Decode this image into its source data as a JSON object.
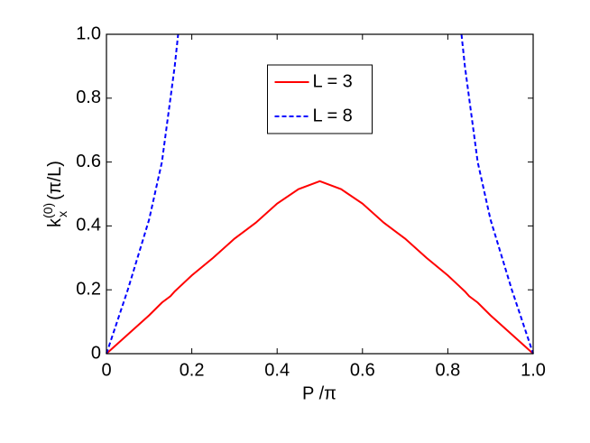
{
  "chart_data": {
    "type": "line",
    "xlabel": "P /π",
    "ylabel": {
      "base": "k",
      "subscript": "x",
      "superscript": "(0)",
      "suffix": "(π/L)"
    },
    "x": [
      0,
      0.05,
      0.1,
      0.13,
      0.15,
      0.16,
      0.168,
      0.2,
      0.25,
      0.3,
      0.35,
      0.4,
      0.45,
      0.5,
      0.55,
      0.6,
      0.65,
      0.7,
      0.75,
      0.8,
      0.832,
      0.84,
      0.85,
      0.87,
      0.9,
      0.95,
      1.0
    ],
    "series": [
      {
        "name": "L = 3",
        "color": "#ff0000",
        "dash": "solid",
        "values": [
          0,
          0.06,
          0.12,
          0.16,
          0.18,
          0.195,
          0.205,
          0.245,
          0.3,
          0.36,
          0.41,
          0.47,
          0.515,
          0.54,
          0.515,
          0.47,
          0.41,
          0.36,
          0.3,
          0.245,
          0.205,
          0.195,
          0.18,
          0.16,
          0.12,
          0.06,
          0
        ]
      },
      {
        "name": "L = 8",
        "color": "#0000ff",
        "dash": "dashed",
        "values": [
          0,
          0.2,
          0.42,
          0.6,
          0.8,
          0.9,
          1.0,
          null,
          null,
          null,
          null,
          null,
          null,
          null,
          null,
          null,
          null,
          null,
          null,
          null,
          1.0,
          0.9,
          0.8,
          0.6,
          0.42,
          0.2,
          0
        ]
      }
    ],
    "xlim": [
      0,
      1
    ],
    "ylim": [
      0,
      1
    ],
    "xticks": [
      0,
      0.2,
      0.4,
      0.6,
      0.8,
      {
        "value": 1,
        "label": "1.0"
      }
    ],
    "yticks": [
      0,
      0.2,
      0.4,
      0.6,
      0.8,
      {
        "value": 1,
        "label": "1.0"
      }
    ],
    "grid": false,
    "legend": "top-center"
  }
}
